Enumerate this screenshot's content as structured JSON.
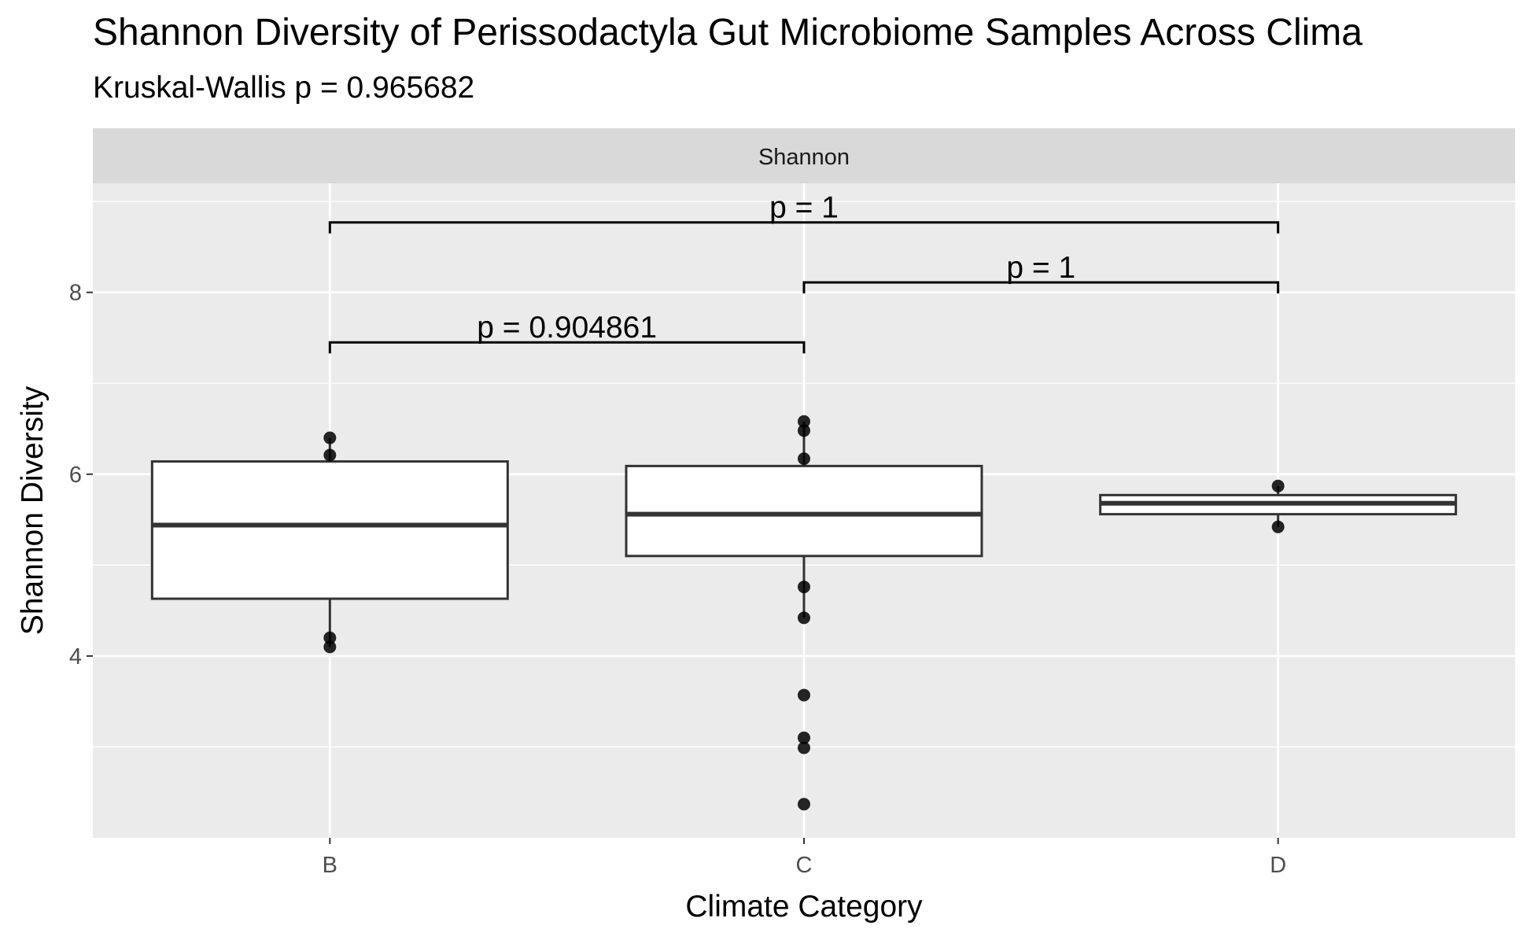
{
  "title": "Shannon Diversity of Perissodactyla Gut Microbiome Samples Across Clima",
  "subtitle": "Kruskal-Wallis p = 0.965682",
  "chart_data": {
    "type": "box",
    "facet_label": "Shannon",
    "xlabel": "Climate Category",
    "ylabel": "Shannon Diversity",
    "categories": [
      "B",
      "C",
      "D"
    ],
    "ylim": [
      2.0,
      9.2
    ],
    "y_ticks": [
      4,
      6,
      8
    ],
    "grid": true,
    "boxes": [
      {
        "category": "B",
        "q1": 4.63,
        "median": 5.44,
        "q3": 6.14,
        "whisker_low": 4.1,
        "whisker_high": 6.4
      },
      {
        "category": "C",
        "q1": 5.1,
        "median": 5.56,
        "q3": 6.09,
        "whisker_low": 4.42,
        "whisker_high": 6.58
      },
      {
        "category": "D",
        "q1": 5.56,
        "median": 5.68,
        "q3": 5.77,
        "whisker_low": 5.42,
        "whisker_high": 5.87
      }
    ],
    "points": [
      {
        "category": "B",
        "y": 6.4
      },
      {
        "category": "B",
        "y": 6.21
      },
      {
        "category": "B",
        "y": 4.2
      },
      {
        "category": "B",
        "y": 4.1
      },
      {
        "category": "C",
        "y": 6.58
      },
      {
        "category": "C",
        "y": 6.48
      },
      {
        "category": "C",
        "y": 6.17
      },
      {
        "category": "C",
        "y": 4.76
      },
      {
        "category": "C",
        "y": 4.42
      },
      {
        "category": "C",
        "y": 3.57
      },
      {
        "category": "C",
        "y": 3.1
      },
      {
        "category": "C",
        "y": 2.99
      },
      {
        "category": "C",
        "y": 2.37
      },
      {
        "category": "D",
        "y": 5.87
      },
      {
        "category": "D",
        "y": 5.42
      }
    ],
    "comparisons": [
      {
        "from": "B",
        "to": "C",
        "y": 7.45,
        "label": "p = 0.904861"
      },
      {
        "from": "C",
        "to": "D",
        "y": 8.11,
        "label": "p = 1"
      },
      {
        "from": "B",
        "to": "D",
        "y": 8.77,
        "label": "p = 1"
      }
    ]
  }
}
